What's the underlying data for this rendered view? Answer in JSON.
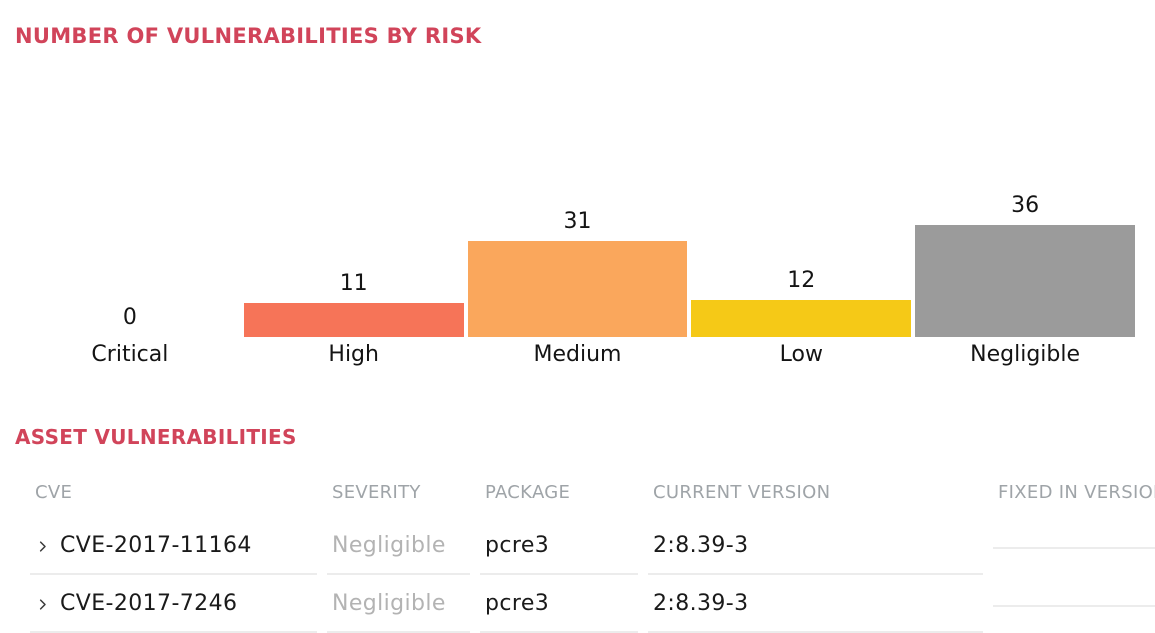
{
  "page_title": "NUMBER OF VULNERABILITIES BY RISK",
  "section_title": "ASSET VULNERABILITIES",
  "accent_color": "#d1445a",
  "chart_data": {
    "type": "bar",
    "title": "NUMBER OF VULNERABILITIES BY RISK",
    "categories": [
      "Critical",
      "High",
      "Medium",
      "Low",
      "Negligible"
    ],
    "values": [
      0,
      11,
      31,
      12,
      36
    ],
    "bar_colors": [
      null,
      "#f67458",
      "#faa75c",
      "#f5c917",
      "#9b9b9b"
    ],
    "ylim": [
      0,
      36
    ],
    "value_labels": true,
    "axes": "hidden",
    "grid": false,
    "legend": "none"
  },
  "table": {
    "columns": [
      "CVE",
      "SEVERITY",
      "PACKAGE",
      "CURRENT VERSION",
      "FIXED IN VERSION"
    ],
    "rows": [
      {
        "cve": "CVE-2017-11164",
        "severity": "Negligible",
        "package": "pcre3",
        "current_version": "2:8.39-3",
        "fixed_in_version": ""
      },
      {
        "cve": "CVE-2017-7246",
        "severity": "Negligible",
        "package": "pcre3",
        "current_version": "2:8.39-3",
        "fixed_in_version": ""
      }
    ],
    "row_expand_icon": "chevron-right-icon"
  }
}
